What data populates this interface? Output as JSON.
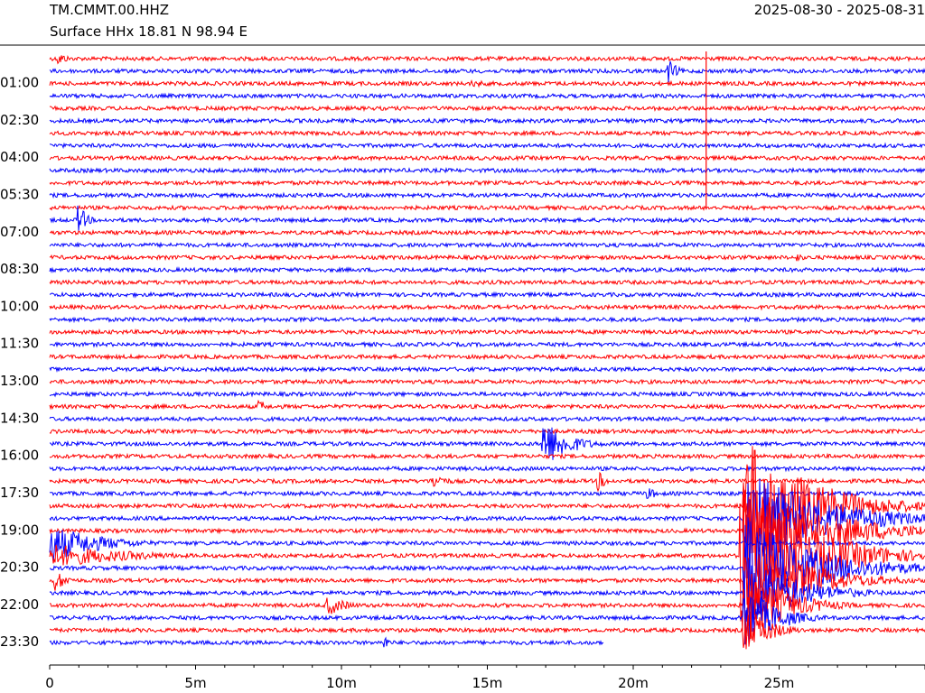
{
  "header": {
    "station": "TM.CMMT.00.HHZ",
    "location": "Surface HHx  18.81 N 98.94 E",
    "date_range": "2025-08-30 - 2025-08-31"
  },
  "chart_data": {
    "type": "line",
    "title": "TM.CMMT.00.HHZ",
    "y_tick_labels": [
      "01:00",
      "02:30",
      "04:00",
      "05:30",
      "07:00",
      "08:30",
      "10:00",
      "11:30",
      "13:00",
      "14:30",
      "16:00",
      "17:30",
      "19:00",
      "20:30",
      "22:00",
      "23:30"
    ],
    "x_tick_labels": [
      "0",
      "5m",
      "10m",
      "15m",
      "20m",
      "25m"
    ],
    "x_range_minutes": [
      0,
      30
    ],
    "row_interval_minutes": 30,
    "row_count": 48,
    "last_row_end_minute": 19,
    "colors": {
      "even_rows": "#ff0000",
      "odd_rows": "#0000ff"
    },
    "events": [
      {
        "row": 0,
        "minute": 0.3,
        "amp": 8,
        "dur": 1.0
      },
      {
        "row": 1,
        "minute": 21.2,
        "amp": 14,
        "dur": 0.9
      },
      {
        "row": 2,
        "minute": 4.7,
        "amp": 5,
        "dur": 0.5
      },
      {
        "row": 2,
        "minute": 14.5,
        "amp": 4,
        "dur": 3.0
      },
      {
        "row": 13,
        "minute": 1.0,
        "amp": 18,
        "dur": 0.8
      },
      {
        "row": 16,
        "minute": 25.6,
        "amp": 5,
        "dur": 1.0
      },
      {
        "row": 17,
        "minute": 19.5,
        "amp": 4,
        "dur": 1.0
      },
      {
        "row": 28,
        "minute": 7.2,
        "amp": 8,
        "dur": 0.8
      },
      {
        "row": 31,
        "minute": 16.9,
        "amp": 30,
        "dur": 2.5
      },
      {
        "row": 34,
        "minute": 13.1,
        "amp": 10,
        "dur": 1.5
      },
      {
        "row": 34,
        "minute": 18.8,
        "amp": 12,
        "dur": 0.8
      },
      {
        "row": 35,
        "minute": 20.5,
        "amp": 7,
        "dur": 1.2
      },
      {
        "row": 36,
        "minute": 23.8,
        "amp": 80,
        "dur": 6.5
      },
      {
        "row": 37,
        "minute": 23.8,
        "amp": 60,
        "dur": 7.5
      },
      {
        "row": 38,
        "minute": 23.8,
        "amp": 55,
        "dur": 8.0
      },
      {
        "row": 39,
        "minute": 0.0,
        "amp": 22,
        "dur": 5.0
      },
      {
        "row": 40,
        "minute": 0.0,
        "amp": 14,
        "dur": 8.0
      },
      {
        "row": 40,
        "minute": 23.7,
        "amp": 90,
        "dur": 6.5
      },
      {
        "row": 41,
        "minute": 23.8,
        "amp": 60,
        "dur": 7.0
      },
      {
        "row": 42,
        "minute": 0.2,
        "amp": 12,
        "dur": 1.3
      },
      {
        "row": 42,
        "minute": 23.8,
        "amp": 50,
        "dur": 6.0
      },
      {
        "row": 43,
        "minute": 23.8,
        "amp": 45,
        "dur": 5.0
      },
      {
        "row": 44,
        "minute": 9.5,
        "amp": 12,
        "dur": 2.0
      },
      {
        "row": 44,
        "minute": 23.8,
        "amp": 45,
        "dur": 4.0
      },
      {
        "row": 45,
        "minute": 23.8,
        "amp": 40,
        "dur": 3.0
      },
      {
        "row": 46,
        "minute": 23.8,
        "amp": 30,
        "dur": 2.5
      },
      {
        "row": 47,
        "minute": 11.5,
        "amp": 8,
        "dur": 0.5
      }
    ],
    "spikes": [
      {
        "minute": 22.5,
        "from_row": 0,
        "to_row": 12
      }
    ],
    "grid": false
  }
}
